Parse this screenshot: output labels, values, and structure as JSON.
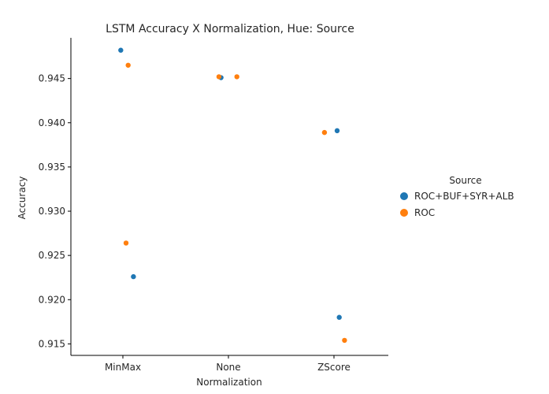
{
  "chart_data": {
    "type": "scatter",
    "title": "LSTM Accuracy X Normalization, Hue: Source",
    "xlabel": "Normalization",
    "ylabel": "Accuracy",
    "categories": [
      "MinMax",
      "None",
      "ZScore"
    ],
    "ylim": [
      0.9137,
      0.9496
    ],
    "yticks": [
      0.915,
      0.92,
      0.925,
      0.93,
      0.935,
      0.94,
      0.945
    ],
    "ytick_labels": [
      "0.915",
      "0.920",
      "0.925",
      "0.930",
      "0.935",
      "0.940",
      "0.945"
    ],
    "grid": false,
    "legend": {
      "title": "Source",
      "placement": "right"
    },
    "series": [
      {
        "name": "ROC+BUF+SYR+ALB",
        "color": "#1f77b4",
        "points": [
          {
            "category": "MinMax",
            "jitter": -0.02,
            "y": 0.9482
          },
          {
            "category": "MinMax",
            "jitter": 0.1,
            "y": 0.9226
          },
          {
            "category": "None",
            "jitter": -0.07,
            "y": 0.9451
          },
          {
            "category": "ZScore",
            "jitter": 0.03,
            "y": 0.9391
          },
          {
            "category": "ZScore",
            "jitter": 0.05,
            "y": 0.918
          }
        ]
      },
      {
        "name": "ROC",
        "color": "#ff7f0e",
        "points": [
          {
            "category": "MinMax",
            "jitter": 0.05,
            "y": 0.9465
          },
          {
            "category": "MinMax",
            "jitter": 0.03,
            "y": 0.9264
          },
          {
            "category": "None",
            "jitter": -0.09,
            "y": 0.9452
          },
          {
            "category": "None",
            "jitter": 0.08,
            "y": 0.9452
          },
          {
            "category": "ZScore",
            "jitter": -0.09,
            "y": 0.9389
          },
          {
            "category": "ZScore",
            "jitter": 0.1,
            "y": 0.9154
          }
        ]
      }
    ]
  }
}
